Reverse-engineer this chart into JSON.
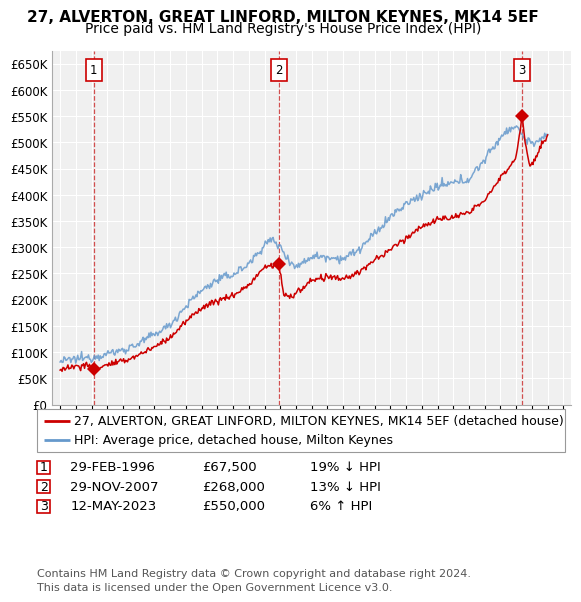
{
  "title": "27, ALVERTON, GREAT LINFORD, MILTON KEYNES, MK14 5EF",
  "subtitle": "Price paid vs. HM Land Registry's House Price Index (HPI)",
  "ylim": [
    0,
    675000
  ],
  "yticks": [
    0,
    50000,
    100000,
    150000,
    200000,
    250000,
    300000,
    350000,
    400000,
    450000,
    500000,
    550000,
    600000,
    650000
  ],
  "xlim_start": 1993.5,
  "xlim_end": 2026.5,
  "plot_bg": "#f0f0f0",
  "grid_color": "#ffffff",
  "red_line_color": "#cc0000",
  "blue_line_color": "#6699cc",
  "transaction_color": "#cc0000",
  "dashed_line_color": "#cc3333",
  "transactions": [
    {
      "num": 1,
      "date": "29-FEB-1996",
      "price": 67500,
      "year": 1996.15,
      "pct": "19%",
      "dir": "↓"
    },
    {
      "num": 2,
      "date": "29-NOV-2007",
      "price": 268000,
      "year": 2007.92,
      "pct": "13%",
      "dir": "↓"
    },
    {
      "num": 3,
      "date": "12-MAY-2023",
      "price": 550000,
      "year": 2023.37,
      "pct": "6%",
      "dir": "↑"
    }
  ],
  "legend_line1": "27, ALVERTON, GREAT LINFORD, MILTON KEYNES, MK14 5EF (detached house)",
  "legend_line2": "HPI: Average price, detached house, Milton Keynes",
  "footer": "Contains HM Land Registry data © Crown copyright and database right 2024.\nThis data is licensed under the Open Government Licence v3.0.",
  "title_fontsize": 11,
  "subtitle_fontsize": 10,
  "tick_fontsize": 8.5,
  "legend_fontsize": 9,
  "table_fontsize": 9.5,
  "footer_fontsize": 8
}
